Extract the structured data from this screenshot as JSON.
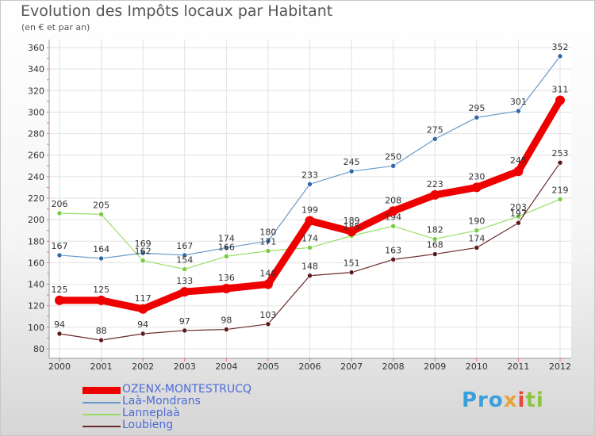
{
  "header": {
    "title": "Evolution des Impôts locaux par Habitant",
    "subtitle": "(en € et par an)"
  },
  "logo": {
    "text": "Proxiti"
  },
  "chart_data": {
    "type": "line",
    "title": "Evolution des Impôts locaux par Habitant",
    "subtitle": "(en € et par an)",
    "xlabel": "",
    "ylabel": "",
    "x": [
      2000,
      2001,
      2002,
      2003,
      2004,
      2005,
      2006,
      2007,
      2008,
      2009,
      2010,
      2011,
      2012
    ],
    "ylim": [
      80,
      360
    ],
    "yticks": [
      80,
      100,
      120,
      140,
      160,
      180,
      200,
      220,
      240,
      260,
      280,
      300,
      320,
      340,
      360
    ],
    "grid": true,
    "legend_position": "bottom-left",
    "series": [
      {
        "name": "Laà-Mondrans",
        "color": "#6699cc",
        "marker": "#3366aa",
        "values": [
          167,
          164,
          169,
          167,
          174,
          180,
          233,
          245,
          250,
          275,
          295,
          301,
          352
        ]
      },
      {
        "name": "Lanneplaà",
        "color": "#99dd66",
        "marker": "#77cc44",
        "values": [
          206,
          205,
          162,
          154,
          166,
          171,
          174,
          185,
          194,
          182,
          190,
          203,
          219
        ]
      },
      {
        "name": "Loubieng",
        "color": "#6b2a2a",
        "marker": "#5a1a1a",
        "values": [
          94,
          88,
          94,
          97,
          98,
          103,
          148,
          151,
          163,
          168,
          174,
          197,
          253
        ]
      },
      {
        "name": "OZENX-MONTESTRUCQ",
        "color": "#ee0000",
        "marker": "#ee0000",
        "values": [
          125,
          125,
          117,
          133,
          136,
          140,
          199,
          189,
          208,
          223,
          230,
          245,
          311
        ]
      }
    ]
  }
}
